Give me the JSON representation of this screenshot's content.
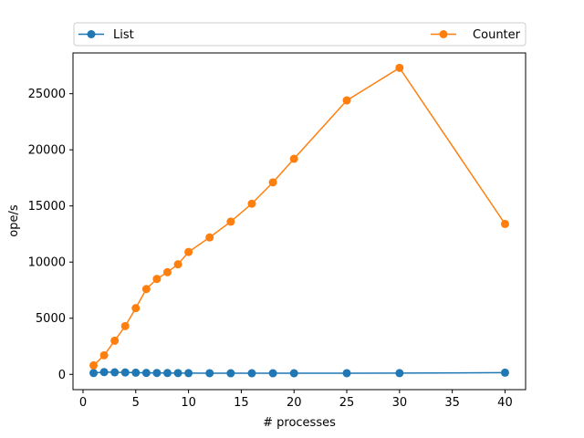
{
  "chart_data": {
    "type": "line",
    "title": "",
    "xlabel": "# processes",
    "ylabel": "ope/s",
    "xlim": [
      -0.95,
      41.95
    ],
    "ylim": [
      -1360,
      28630
    ],
    "xticks": [
      0,
      5,
      10,
      15,
      20,
      25,
      30,
      35,
      40
    ],
    "yticks": [
      0,
      5000,
      10000,
      15000,
      20000,
      25000
    ],
    "grid": false,
    "legend_position": "top",
    "x": [
      1,
      2,
      3,
      4,
      5,
      6,
      7,
      8,
      9,
      10,
      12,
      14,
      16,
      18,
      20,
      25,
      30,
      40
    ],
    "series": [
      {
        "name": "List",
        "color": "#1f77b4",
        "values": [
          120,
          200,
          180,
          170,
          150,
          130,
          125,
          120,
          115,
          110,
          105,
          100,
          100,
          100,
          100,
          105,
          110,
          150
        ]
      },
      {
        "name": "Counter",
        "color": "#ff7f0e",
        "values": [
          800,
          1700,
          3000,
          4300,
          5900,
          7600,
          8500,
          9100,
          9800,
          10900,
          12200,
          13600,
          15200,
          17100,
          19200,
          24400,
          27300,
          13400
        ]
      }
    ]
  }
}
